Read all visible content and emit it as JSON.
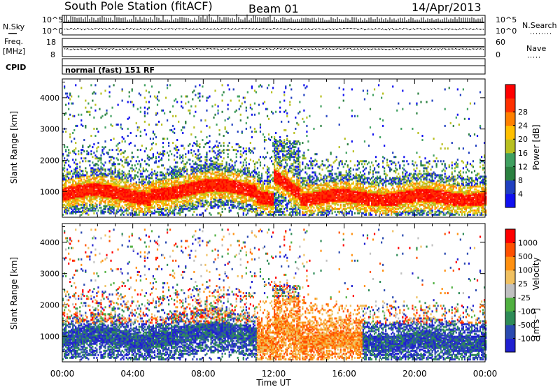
{
  "header": {
    "station": "South Pole Station (fitACF)",
    "beam": "Beam 01",
    "date": "14/Apr/2013"
  },
  "strip_panels": {
    "nsky_label": "N.Sky",
    "nsky_ticks": [
      "10^5",
      "10^0"
    ],
    "nsearch_label": "N.Search",
    "nsearch_ticks": [
      "10^5",
      "10^0"
    ],
    "freq_label_1": "Freq.",
    "freq_label_2": "[MHz]",
    "freq_ticks": [
      "18",
      "8"
    ],
    "nave_label": "Nave",
    "nave_ticks": [
      "60",
      "0"
    ],
    "cpid_label": "CPID",
    "cpid_text": "normal (fast) 151 RF"
  },
  "chart_data": [
    {
      "type": "heatmap",
      "name": "power-panel",
      "ylabel": "Slant Range [km]",
      "yticks": [
        1000,
        2000,
        3000,
        4000
      ],
      "ylim": [
        180,
        4600
      ],
      "xlim_hours": [
        0,
        24
      ],
      "colorbar": {
        "label": "Power [dB]",
        "ticks": [
          "4",
          "8",
          "12",
          "16",
          "20",
          "24",
          "28"
        ],
        "colors": [
          "#1010f0",
          "#2040c0",
          "#2a8040",
          "#40a060",
          "#b8c020",
          "#ffc000",
          "#ff8000",
          "#ff3000",
          "#ff0000"
        ]
      }
    },
    {
      "type": "heatmap",
      "name": "velocity-panel",
      "ylabel": "Slant Range [km]",
      "yticks": [
        1000,
        2000,
        3000,
        4000
      ],
      "ylim": [
        180,
        4600
      ],
      "xlim_hours": [
        0,
        24
      ],
      "colorbar": {
        "label": "Velocity",
        "units": "[m s⁻¹]",
        "ticks": [
          "1000",
          "500",
          "100",
          "25",
          "-25",
          "-100",
          "-500",
          "-1000"
        ],
        "colors": [
          "#2020d0",
          "#2a4ab0",
          "#2e8b57",
          "#50b040",
          "#c0c0c0",
          "#f0c060",
          "#ff9010",
          "#ff5000",
          "#ff0000"
        ]
      }
    }
  ],
  "x_axis": {
    "label": "Time UT",
    "ticks": [
      "00:00",
      "04:00",
      "08:00",
      "12:00",
      "16:00",
      "20:00",
      "00:00"
    ]
  }
}
